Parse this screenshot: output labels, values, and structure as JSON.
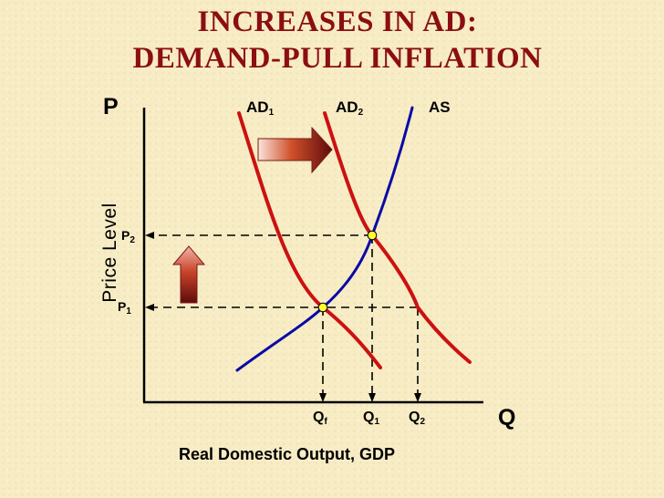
{
  "title": {
    "line1": "INCREASES IN AD:",
    "line2": "DEMAND-PULL INFLATION"
  },
  "axes": {
    "y_letter": "P",
    "x_letter": "Q",
    "y_label": "Price Level",
    "x_label": "Real Domestic Output, GDP"
  },
  "curves": {
    "ad1": {
      "base": "AD",
      "sub": "1"
    },
    "ad2": {
      "base": "AD",
      "sub": "2"
    },
    "as": {
      "base": "AS"
    }
  },
  "price_levels": {
    "p1": {
      "base": "P",
      "sub": "1"
    },
    "p2": {
      "base": "P",
      "sub": "2"
    }
  },
  "quantities": {
    "qf": {
      "base": "Q",
      "sub": "f"
    },
    "q1": {
      "base": "Q",
      "sub": "1"
    },
    "q2": {
      "base": "Q",
      "sub": "2"
    }
  },
  "colors": {
    "title": "#8b0e12",
    "ad_curves": "#cc1111",
    "as_curve": "#0a0aa8",
    "equilibrium_point": "#ffff33",
    "arrow": "#a52a2a"
  }
}
